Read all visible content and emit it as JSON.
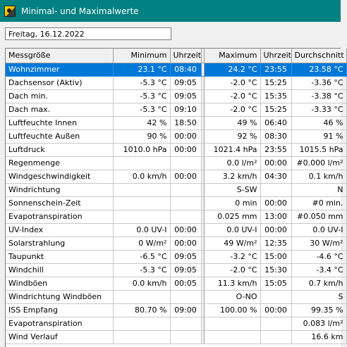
{
  "window": {
    "title": "Minimal- und Maximalwerte"
  },
  "date_field": {
    "value": "Freitag, 16.12.2022"
  },
  "table": {
    "headers": [
      "Messgröße",
      "Minimum",
      "Uhrzeit",
      "Maximum",
      "Uhrzeit",
      "Durchschnitt"
    ],
    "selected_row": 0,
    "rows": [
      [
        "Wohnzimmer",
        "23.1 °C",
        "08:40",
        "24.2 °C",
        "23:55",
        "23.58 °C"
      ],
      [
        "Dachsensor (Aktiv)",
        "-5.3 °C",
        "09:05",
        "-2.0 °C",
        "15:25",
        "-3.36 °C"
      ],
      [
        "Dach min.",
        "-5.3 °C",
        "09:05",
        "-2.0 °C",
        "15:35",
        "-3.38 °C"
      ],
      [
        "Dach max.",
        "-5.3 °C",
        "09:10",
        "-2.0 °C",
        "15:25",
        "-3.33 °C"
      ],
      [
        "Luftfeuchte Innen",
        "42 %",
        "18:50",
        "49 %",
        "06:40",
        "46 %"
      ],
      [
        "Luftfeuchte Außen",
        "90 %",
        "00:00",
        "92 %",
        "08:30",
        "91 %"
      ],
      [
        "Luftdruck",
        "1010.0 hPa",
        "00:00",
        "1021.4 hPa",
        "23:55",
        "1015.5 hPa"
      ],
      [
        "Regenmenge",
        "",
        "",
        "0.0 l/m²",
        "00:00",
        "#0.000 l/m²"
      ],
      [
        "Windgeschwindigkeit",
        "0.0 km/h",
        "00:00",
        "3.2 km/h",
        "04:30",
        "0.1 km/h"
      ],
      [
        "Windrichtung",
        "",
        "",
        "S-SW",
        "",
        "N"
      ],
      [
        "Sonnenschein-Zeit",
        "",
        "",
        "0 min",
        "00:00",
        "#0 min."
      ],
      [
        "Evapotranspiration",
        "",
        "",
        "0.025 mm",
        "13:00",
        "#0.050 mm"
      ],
      [
        "UV-Index",
        "0.0 UV-I",
        "00:00",
        "0.0 UV-I",
        "00:00",
        "0.0 UV-I"
      ],
      [
        "Solarstrahlung",
        "0 W/m²",
        "00:00",
        "49 W/m²",
        "12:35",
        "30 W/m²"
      ],
      [
        "Taupunkt",
        "-6.5 °C",
        "09:05",
        "-3.2 °C",
        "15:00",
        "-4.6 °C"
      ],
      [
        "Windchill",
        "-5.3 °C",
        "09:05",
        "-2.0 °C",
        "15:30",
        "-3.4 °C"
      ],
      [
        "Windböen",
        "0.0 km/h",
        "00:05",
        "11.3 km/h",
        "15:05",
        "0.7 km/h"
      ],
      [
        "Windrichtung Windböen",
        "",
        "",
        "O-NO",
        "",
        "S"
      ],
      [
        "ISS Empfang",
        "80.70 %",
        "09:00",
        "100.00 %",
        "00:00",
        "99.35 %"
      ],
      [
        "Evapotranspiration",
        "",
        "",
        "",
        "",
        "0.083 l/m²"
      ],
      [
        "Wind Verlauf",
        "",
        "",
        "",
        "",
        "16.6 km"
      ]
    ]
  },
  "colors": {
    "titlebar": "#008080",
    "selection": "#0078d7"
  },
  "icons": {
    "app": "weather-station-icon"
  }
}
